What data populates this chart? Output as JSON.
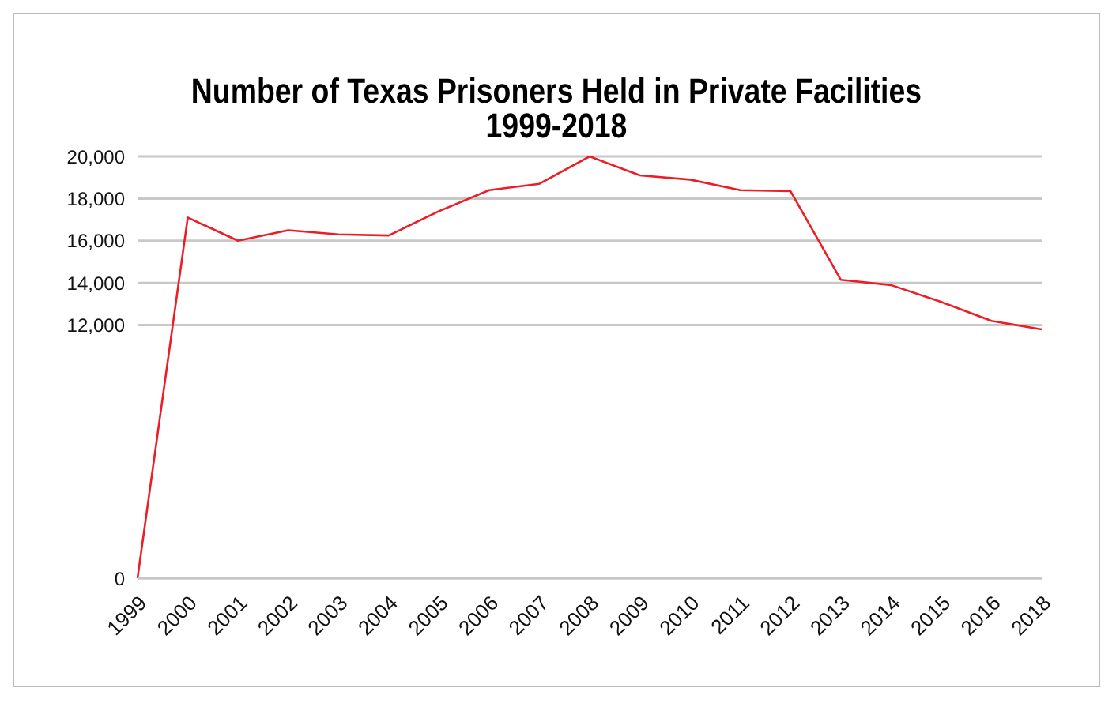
{
  "chart_data": {
    "type": "line",
    "title": "Number of Texas Prisoners Held in Private Facilities\n1999-2018",
    "categories": [
      "1999",
      "2000",
      "2001",
      "2002",
      "2003",
      "2004",
      "2005",
      "2006",
      "2007",
      "2008",
      "2009",
      "2010",
      "2011",
      "2012",
      "2013",
      "2014",
      "2015",
      "2016",
      "2018"
    ],
    "series": [
      {
        "color": "#ee1c25",
        "values": [
          0,
          17100,
          16000,
          16500,
          16300,
          16250,
          17400,
          18400,
          18700,
          20000,
          19100,
          18900,
          18400,
          18350,
          14150,
          13900,
          13100,
          12200,
          11800
        ]
      }
    ],
    "ylim": [
      0,
      20000
    ],
    "yticks": [
      0,
      {
        "value": 12000,
        "label": "12,000"
      },
      {
        "value": 14000,
        "label": "14,000"
      },
      {
        "value": 16000,
        "label": "16,000"
      },
      {
        "value": 18000,
        "label": "18,000"
      },
      {
        "value": 20000,
        "label": "20,000"
      }
    ],
    "grid": "y",
    "legend": false,
    "marker": "none",
    "line_style": "solid"
  }
}
